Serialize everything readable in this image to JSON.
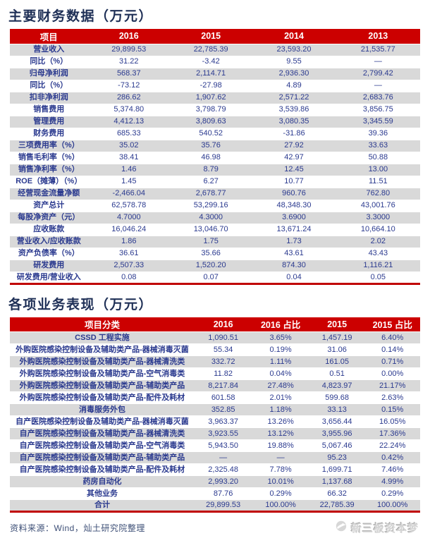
{
  "colors": {
    "header_red": "#CC0000",
    "bottom_border_red": "#C00000",
    "row_gray": "#D9D9D9",
    "table_text_blue": "#2B3A8F",
    "title_navy": "#1E2F56"
  },
  "table1": {
    "title": "主要财务数据（万元）",
    "headers": [
      "项目",
      "2016",
      "2015",
      "2014",
      "2013"
    ],
    "rows": [
      {
        "label": "营业收入",
        "values": [
          "29,899.53",
          "22,785.39",
          "23,593.20",
          "21,535.77"
        ]
      },
      {
        "label": "同比（%）",
        "values": [
          "31.22",
          "-3.42",
          "9.55",
          "—"
        ]
      },
      {
        "label": "归母净利润",
        "values": [
          "568.37",
          "2,114.71",
          "2,936.30",
          "2,799.42"
        ]
      },
      {
        "label": "同比（%）",
        "values": [
          "-73.12",
          "-27.98",
          "4.89",
          "—"
        ]
      },
      {
        "label": "扣非净利润",
        "values": [
          "286.62",
          "1,907.62",
          "2,571.22",
          "2,683.76"
        ]
      },
      {
        "label": "销售费用",
        "values": [
          "5,374.80",
          "3,798.79",
          "3,539.86",
          "3,856.75"
        ]
      },
      {
        "label": "管理费用",
        "values": [
          "4,412.13",
          "3,809.63",
          "3,080.35",
          "3,345.59"
        ]
      },
      {
        "label": "财务费用",
        "values": [
          "685.33",
          "540.52",
          "-31.86",
          "39.36"
        ]
      },
      {
        "label": "三项费用率（%）",
        "values": [
          "35.02",
          "35.76",
          "27.92",
          "33.63"
        ]
      },
      {
        "label": "销售毛利率（%）",
        "values": [
          "38.41",
          "46.98",
          "42.97",
          "50.88"
        ]
      },
      {
        "label": "销售净利率（%）",
        "values": [
          "1.46",
          "8.79",
          "12.45",
          "13.00"
        ]
      },
      {
        "label": "ROE（摊薄）（%）",
        "values": [
          "1.45",
          "6.27",
          "10.77",
          "11.51"
        ]
      },
      {
        "label": "经营现金流量净额",
        "values": [
          "-2,466.04",
          "2,678.77",
          "960.76",
          "762.80"
        ]
      },
      {
        "label": "资产总计",
        "values": [
          "62,578.78",
          "53,299.16",
          "48,348.30",
          "43,001.76"
        ]
      },
      {
        "label": "每股净资产（元）",
        "values": [
          "4.7000",
          "4.3000",
          "3.6900",
          "3.3000"
        ]
      },
      {
        "label": "应收账款",
        "values": [
          "16,046.24",
          "13,046.70",
          "13,671.24",
          "10,664.10"
        ]
      },
      {
        "label": "营业收入/应收账款",
        "values": [
          "1.86",
          "1.75",
          "1.73",
          "2.02"
        ]
      },
      {
        "label": "资产负债率（%）",
        "values": [
          "36.61",
          "35.66",
          "43.61",
          "43.43"
        ]
      },
      {
        "label": "研发费用",
        "values": [
          "2,507.33",
          "1,520.20",
          "874.30",
          "1,116.21"
        ]
      },
      {
        "label": "研发费用/营业收入",
        "values": [
          "0.08",
          "0.07",
          "0.04",
          "0.05"
        ]
      }
    ]
  },
  "table2": {
    "title": "各项业务表现（万元）",
    "headers": [
      "项目分类",
      "2016",
      "2016 占比",
      "2015",
      "2015 占比"
    ],
    "rows": [
      {
        "label": "CSSD 工程实施",
        "values": [
          "1,090.51",
          "3.65%",
          "1,457.19",
          "6.40%"
        ]
      },
      {
        "label": "外购医院感染控制设备及辅助类产品-器械消毒灭菌",
        "values": [
          "55.34",
          "0.19%",
          "31.06",
          "0.14%"
        ]
      },
      {
        "label": "外购医院感染控制设备及辅助类产品-器械清洗类",
        "values": [
          "332.72",
          "1.11%",
          "161.05",
          "0.71%"
        ]
      },
      {
        "label": "外购医院感染控制设备及辅助类产品-空气消毒类",
        "values": [
          "11.82",
          "0.04%",
          "0.51",
          "0.00%"
        ]
      },
      {
        "label": "外购医院感染控制设备及辅助类产品-辅助类产品",
        "values": [
          "8,217.84",
          "27.48%",
          "4,823.97",
          "21.17%"
        ]
      },
      {
        "label": "外购医院感染控制设备及辅助类产品-配件及耗材",
        "values": [
          "601.58",
          "2.01%",
          "599.68",
          "2.63%"
        ]
      },
      {
        "label": "消毒服务外包",
        "values": [
          "352.85",
          "1.18%",
          "33.13",
          "0.15%"
        ]
      },
      {
        "label": "自产医院感染控制设备及辅助类产品-器械消毒灭菌",
        "values": [
          "3,963.37",
          "13.26%",
          "3,656.44",
          "16.05%"
        ]
      },
      {
        "label": "自产医院感染控制设备及辅助类产品-器械清洗类",
        "values": [
          "3,923.55",
          "13.12%",
          "3,955.96",
          "17.36%"
        ]
      },
      {
        "label": "自产医院感染控制设备及辅助类产品-空气消毒类",
        "values": [
          "5,943.50",
          "19.88%",
          "5,067.46",
          "22.24%"
        ]
      },
      {
        "label": "自产医院感染控制设备及辅助类产品-辅助类产品",
        "values": [
          "—",
          "—",
          "95.23",
          "0.42%"
        ]
      },
      {
        "label": "自产医院感染控制设备及辅助类产品-配件及耗材",
        "values": [
          "2,325.48",
          "7.78%",
          "1,699.71",
          "7.46%"
        ]
      },
      {
        "label": "药房自动化",
        "values": [
          "2,993.20",
          "10.01%",
          "1,137.68",
          "4.99%"
        ]
      },
      {
        "label": "其他业务",
        "values": [
          "87.76",
          "0.29%",
          "66.32",
          "0.29%"
        ]
      },
      {
        "label": "合计",
        "values": [
          "29,899.53",
          "100.00%",
          "22,785.39",
          "100.00%"
        ]
      }
    ]
  },
  "footer": {
    "source": "资料来源：Wind，灿土研究院整理",
    "logo_text": "新三板资本梦"
  }
}
